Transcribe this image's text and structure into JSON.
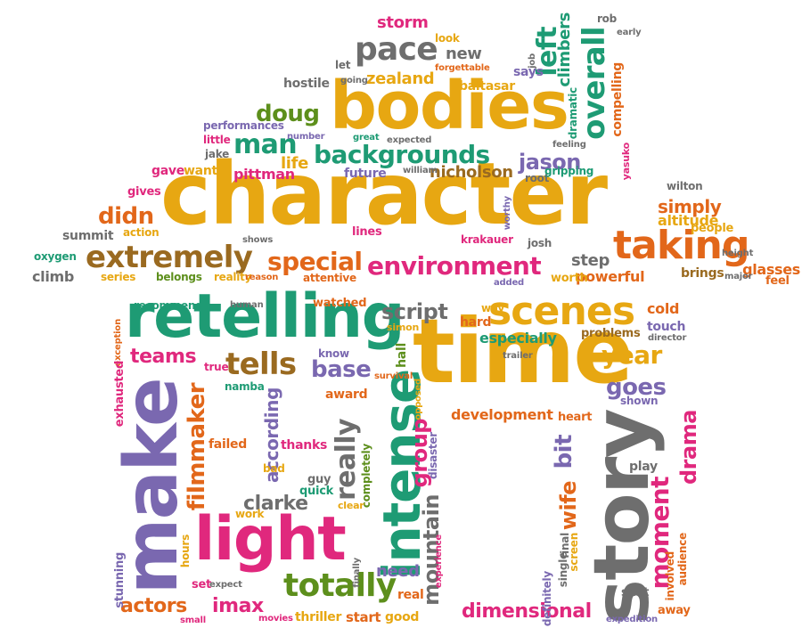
{
  "colors": {
    "gold": "#e7a712",
    "green": "#1e9b74",
    "gray": "#6e6e6e",
    "orange": "#e2671a",
    "pink": "#e0287d",
    "brown": "#9a6a20",
    "purple": "#7a68b0",
    "olive": "#5d8f1c",
    "yellow": "#d9b232"
  },
  "words": [
    {
      "text": "character",
      "color": "gold",
      "rotate": 0
    },
    {
      "text": "bodies",
      "color": "gold",
      "rotate": 0
    },
    {
      "text": "time",
      "color": "gold",
      "rotate": 0
    },
    {
      "text": "retelling",
      "color": "green",
      "rotate": 0
    },
    {
      "text": "make",
      "color": "purple",
      "rotate": -90
    },
    {
      "text": "story",
      "color": "gray",
      "rotate": -90
    },
    {
      "text": "light",
      "color": "pink",
      "rotate": 0
    },
    {
      "text": "intense",
      "color": "green",
      "rotate": -90
    },
    {
      "text": "scenes",
      "color": "gold",
      "rotate": 0
    },
    {
      "text": "taking",
      "color": "orange",
      "rotate": 0
    },
    {
      "text": "extremely",
      "color": "brown",
      "rotate": 0
    },
    {
      "text": "environment",
      "color": "pink",
      "rotate": 0
    },
    {
      "text": "backgrounds",
      "color": "green",
      "rotate": 0
    },
    {
      "text": "overall",
      "color": "green",
      "rotate": -90
    },
    {
      "text": "pace",
      "color": "gray",
      "rotate": 0
    },
    {
      "text": "man",
      "color": "green",
      "rotate": 0
    },
    {
      "text": "tells",
      "color": "brown",
      "rotate": 0
    },
    {
      "text": "totally",
      "color": "olive",
      "rotate": 0
    },
    {
      "text": "special",
      "color": "orange",
      "rotate": 0
    },
    {
      "text": "filmmaker",
      "color": "orange",
      "rotate": -90
    },
    {
      "text": "mountain",
      "color": "gray",
      "rotate": -90
    },
    {
      "text": "moment",
      "color": "pink",
      "rotate": -90
    },
    {
      "text": "really",
      "color": "gray",
      "rotate": -90
    },
    {
      "text": "left",
      "color": "green",
      "rotate": -90
    },
    {
      "text": "year",
      "color": "gold",
      "rotate": 0
    },
    {
      "text": "actors",
      "color": "orange",
      "rotate": 0
    },
    {
      "text": "imax",
      "color": "pink",
      "rotate": 0
    },
    {
      "text": "base",
      "color": "purple",
      "rotate": 0
    },
    {
      "text": "dimensional",
      "color": "pink",
      "rotate": 0
    },
    {
      "text": "script",
      "color": "gray",
      "rotate": 0
    },
    {
      "text": "teams",
      "color": "pink",
      "rotate": 0
    },
    {
      "text": "goes",
      "color": "purple",
      "rotate": 0
    },
    {
      "text": "didn",
      "color": "orange",
      "rotate": 0
    },
    {
      "text": "doug",
      "color": "olive",
      "rotate": 0
    },
    {
      "text": "group",
      "color": "pink",
      "rotate": -90
    },
    {
      "text": "clarke",
      "color": "gray",
      "rotate": 0
    },
    {
      "text": "jason",
      "color": "purple",
      "rotate": 0
    },
    {
      "text": "development",
      "color": "orange",
      "rotate": 0
    },
    {
      "text": "drama",
      "color": "pink",
      "rotate": -90
    },
    {
      "text": "bit",
      "color": "purple",
      "rotate": -90
    },
    {
      "text": "wife",
      "color": "orange",
      "rotate": -90
    },
    {
      "text": "storm",
      "color": "pink",
      "rotate": 0
    },
    {
      "text": "zealand",
      "color": "gold",
      "rotate": 0
    },
    {
      "text": "new",
      "color": "gray",
      "rotate": 0
    },
    {
      "text": "pittman",
      "color": "pink",
      "rotate": 0
    },
    {
      "text": "life",
      "color": "gold",
      "rotate": 0
    },
    {
      "text": "nicholson",
      "color": "brown",
      "rotate": 0
    },
    {
      "text": "future",
      "color": "purple",
      "rotate": 0
    },
    {
      "text": "simply",
      "color": "orange",
      "rotate": 0
    },
    {
      "text": "especially",
      "color": "green",
      "rotate": 0
    },
    {
      "text": "according",
      "color": "purple",
      "rotate": -90
    },
    {
      "text": "thriller",
      "color": "gold",
      "rotate": 0
    },
    {
      "text": "summit",
      "color": "gray",
      "rotate": 0
    },
    {
      "text": "climb",
      "color": "gray",
      "rotate": 0
    },
    {
      "text": "step",
      "color": "gray",
      "rotate": 0
    },
    {
      "text": "powerful",
      "color": "orange",
      "rotate": 0
    },
    {
      "text": "brings",
      "color": "brown",
      "rotate": 0
    },
    {
      "text": "glasses",
      "color": "orange",
      "rotate": 0
    },
    {
      "text": "altitude",
      "color": "gold",
      "rotate": 0
    },
    {
      "text": "people",
      "color": "gold",
      "rotate": 0
    },
    {
      "text": "attentive",
      "color": "orange",
      "rotate": 0
    },
    {
      "text": "reality",
      "color": "gold",
      "rotate": 0
    },
    {
      "text": "series",
      "color": "gold",
      "rotate": 0
    },
    {
      "text": "belongs",
      "color": "olive",
      "rotate": 0
    },
    {
      "text": "oxygen",
      "color": "green",
      "rotate": 0
    },
    {
      "text": "action",
      "color": "gold",
      "rotate": 0
    },
    {
      "text": "gave",
      "color": "pink",
      "rotate": 0
    },
    {
      "text": "want",
      "color": "gold",
      "rotate": 0
    },
    {
      "text": "gives",
      "color": "pink",
      "rotate": 0
    },
    {
      "text": "hostile",
      "color": "gray",
      "rotate": 0
    },
    {
      "text": "performances",
      "color": "purple",
      "rotate": 0
    },
    {
      "text": "little",
      "color": "pink",
      "rotate": 0
    },
    {
      "text": "jake",
      "color": "gray",
      "rotate": 0
    },
    {
      "text": "number",
      "color": "purple",
      "rotate": 0
    },
    {
      "text": "great",
      "color": "green",
      "rotate": 0
    },
    {
      "text": "expected",
      "color": "gray",
      "rotate": 0
    },
    {
      "text": "william",
      "color": "gray",
      "rotate": 0
    },
    {
      "text": "root",
      "color": "gray",
      "rotate": 0
    },
    {
      "text": "gripping",
      "color": "green",
      "rotate": 0
    },
    {
      "text": "feeling",
      "color": "gray",
      "rotate": 0
    },
    {
      "text": "climbers",
      "color": "green",
      "rotate": -90
    },
    {
      "text": "compelling",
      "color": "orange",
      "rotate": -90
    },
    {
      "text": "dramatic",
      "color": "green",
      "rotate": -90
    },
    {
      "text": "baltasar",
      "color": "gold",
      "rotate": 0
    },
    {
      "text": "says",
      "color": "purple",
      "rotate": 0
    },
    {
      "text": "look",
      "color": "gold",
      "rotate": 0
    },
    {
      "text": "rob",
      "color": "gray",
      "rotate": 0
    },
    {
      "text": "early",
      "color": "gray",
      "rotate": 0
    },
    {
      "text": "job",
      "color": "gray",
      "rotate": -90
    },
    {
      "text": "let",
      "color": "gray",
      "rotate": 0
    },
    {
      "text": "going",
      "color": "gray",
      "rotate": 0
    },
    {
      "text": "forgettable",
      "color": "orange",
      "rotate": 0
    },
    {
      "text": "wilton",
      "color": "gray",
      "rotate": 0
    },
    {
      "text": "yasuko",
      "color": "pink",
      "rotate": -90
    },
    {
      "text": "worthy",
      "color": "purple",
      "rotate": -90
    },
    {
      "text": "krakauer",
      "color": "pink",
      "rotate": 0
    },
    {
      "text": "josh",
      "color": "gray",
      "rotate": 0
    },
    {
      "text": "lines",
      "color": "pink",
      "rotate": 0
    },
    {
      "text": "shows",
      "color": "gray",
      "rotate": 0
    },
    {
      "text": "reason",
      "color": "orange",
      "rotate": 0
    },
    {
      "text": "added",
      "color": "purple",
      "rotate": 0
    },
    {
      "text": "worth",
      "color": "gold",
      "rotate": 0
    },
    {
      "text": "height",
      "color": "gray",
      "rotate": 0
    },
    {
      "text": "major",
      "color": "gray",
      "rotate": 0
    },
    {
      "text": "feel",
      "color": "orange",
      "rotate": 0
    },
    {
      "text": "recommend",
      "color": "green",
      "rotate": 0
    },
    {
      "text": "human",
      "color": "gray",
      "rotate": 0
    },
    {
      "text": "watched",
      "color": "orange",
      "rotate": 0
    },
    {
      "text": "way",
      "color": "gold",
      "rotate": 0
    },
    {
      "text": "hard",
      "color": "orange",
      "rotate": 0
    },
    {
      "text": "cold",
      "color": "orange",
      "rotate": 0
    },
    {
      "text": "touch",
      "color": "purple",
      "rotate": 0
    },
    {
      "text": "director",
      "color": "gray",
      "rotate": 0
    },
    {
      "text": "problems",
      "color": "brown",
      "rotate": 0
    },
    {
      "text": "trailer",
      "color": "gray",
      "rotate": 0
    },
    {
      "text": "simon",
      "color": "gold",
      "rotate": 0
    },
    {
      "text": "know",
      "color": "purple",
      "rotate": 0
    },
    {
      "text": "hall",
      "color": "olive",
      "rotate": -90
    },
    {
      "text": "survival",
      "color": "orange",
      "rotate": 0
    },
    {
      "text": "exception",
      "color": "orange",
      "rotate": -90
    },
    {
      "text": "exhausted",
      "color": "pink",
      "rotate": -90
    },
    {
      "text": "true",
      "color": "pink",
      "rotate": 0
    },
    {
      "text": "namba",
      "color": "green",
      "rotate": 0
    },
    {
      "text": "award",
      "color": "orange",
      "rotate": 0
    },
    {
      "text": "opposed",
      "color": "gold",
      "rotate": -90
    },
    {
      "text": "heart",
      "color": "orange",
      "rotate": 0
    },
    {
      "text": "shown",
      "color": "purple",
      "rotate": 0
    },
    {
      "text": "failed",
      "color": "orange",
      "rotate": 0
    },
    {
      "text": "thanks",
      "color": "pink",
      "rotate": 0
    },
    {
      "text": "bad",
      "color": "gold",
      "rotate": 0
    },
    {
      "text": "disaster",
      "color": "purple",
      "rotate": -90
    },
    {
      "text": "completely",
      "color": "olive",
      "rotate": -90
    },
    {
      "text": "play",
      "color": "gray",
      "rotate": 0
    },
    {
      "text": "guy",
      "color": "gray",
      "rotate": 0
    },
    {
      "text": "quick",
      "color": "green",
      "rotate": 0
    },
    {
      "text": "clear",
      "color": "gold",
      "rotate": 0
    },
    {
      "text": "work",
      "color": "gold",
      "rotate": 0
    },
    {
      "text": "hours",
      "color": "gold",
      "rotate": -90
    },
    {
      "text": "stunning",
      "color": "purple",
      "rotate": -90
    },
    {
      "text": "need",
      "color": "purple",
      "rotate": 0
    },
    {
      "text": "finally",
      "color": "gray",
      "rotate": -90
    },
    {
      "text": "set",
      "color": "pink",
      "rotate": 0
    },
    {
      "text": "expect",
      "color": "gray",
      "rotate": 0
    },
    {
      "text": "small",
      "color": "pink",
      "rotate": 0
    },
    {
      "text": "movies",
      "color": "pink",
      "rotate": 0
    },
    {
      "text": "real",
      "color": "orange",
      "rotate": 0
    },
    {
      "text": "start",
      "color": "orange",
      "rotate": 0
    },
    {
      "text": "good",
      "color": "gold",
      "rotate": 0
    },
    {
      "text": "experience",
      "color": "pink",
      "rotate": -90
    },
    {
      "text": "definitely",
      "color": "purple",
      "rotate": -90
    },
    {
      "text": "single",
      "color": "gray",
      "rotate": -90
    },
    {
      "text": "final",
      "color": "gray",
      "rotate": -90
    },
    {
      "text": "screen",
      "color": "gold",
      "rotate": -90
    },
    {
      "text": "shot",
      "color": "gray",
      "rotate": 0
    },
    {
      "text": "expedition",
      "color": "purple",
      "rotate": 0
    },
    {
      "text": "away",
      "color": "orange",
      "rotate": 0
    },
    {
      "text": "involved",
      "color": "orange",
      "rotate": -90
    },
    {
      "text": "audience",
      "color": "orange",
      "rotate": -90
    }
  ]
}
